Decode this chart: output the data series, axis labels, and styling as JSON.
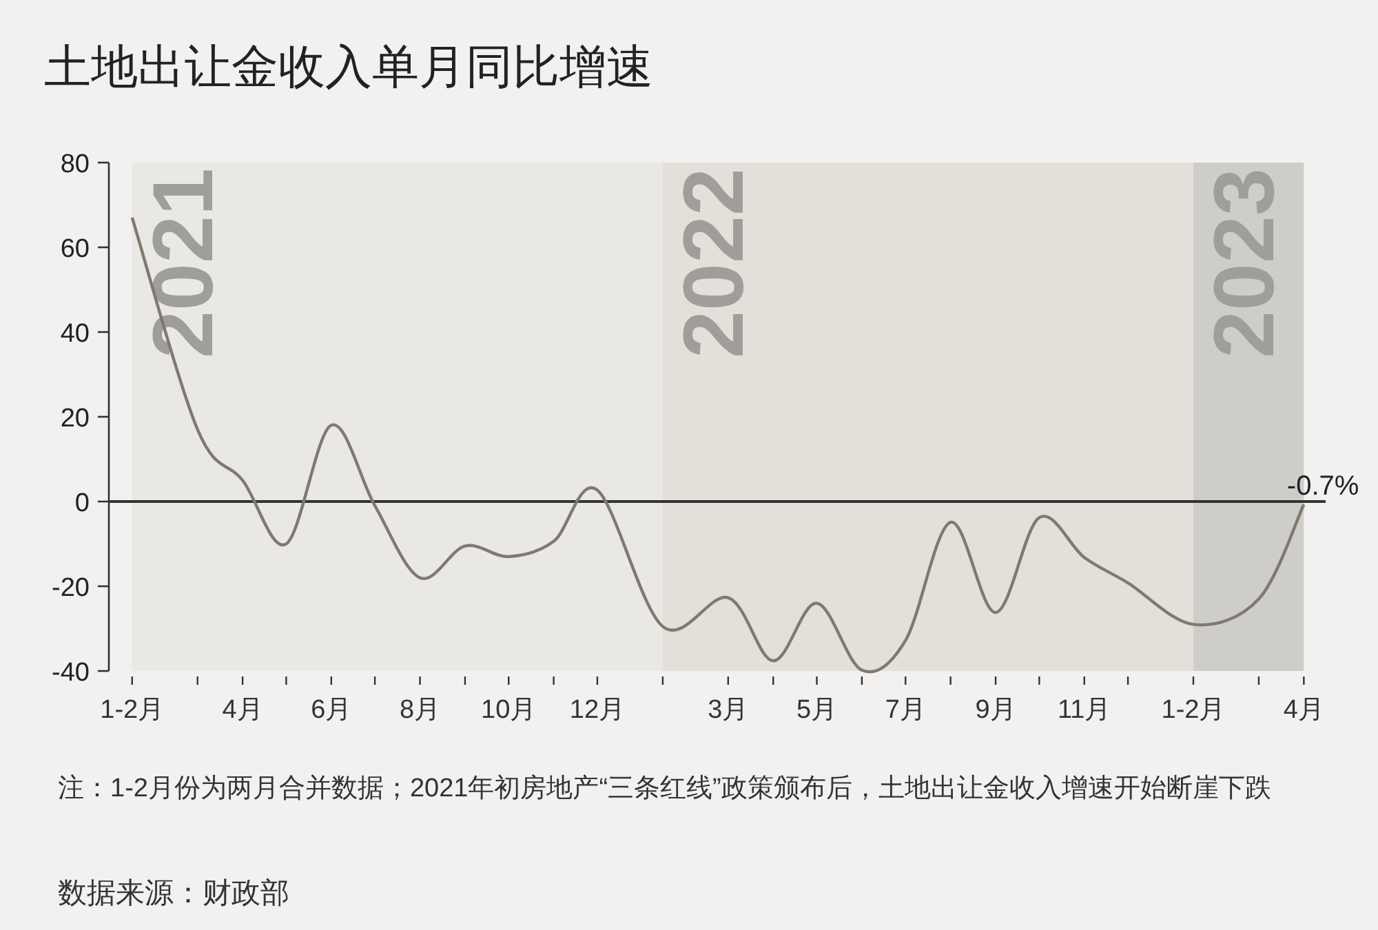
{
  "chart_data": {
    "type": "line",
    "title": "土地出让金收入单月同比增速",
    "x": [
      "2021-01-15",
      "2021-03",
      "2021-04",
      "2021-05",
      "2021-06",
      "2021-07",
      "2021-08",
      "2021-09",
      "2021-10",
      "2021-11",
      "2021-12",
      "2022-01-15",
      "2022-03",
      "2022-04",
      "2022-05",
      "2022-06",
      "2022-07",
      "2022-08",
      "2022-09",
      "2022-10",
      "2022-11",
      "2022-12",
      "2023-01-15",
      "2023-03",
      "2023-04"
    ],
    "xlim": [
      "2020-12-30",
      "2023-04-16"
    ],
    "xticks": [
      {
        "value": "2021-01-15",
        "label": "1-2月"
      },
      {
        "value": "2021-03",
        "label": null
      },
      {
        "value": "2021-04",
        "label": "4月"
      },
      {
        "value": "2021-05",
        "label": null
      },
      {
        "value": "2021-06",
        "label": "6月"
      },
      {
        "value": "2021-07",
        "label": null
      },
      {
        "value": "2021-08",
        "label": "8月"
      },
      {
        "value": "2021-09",
        "label": null
      },
      {
        "value": "2021-10",
        "label": "10月"
      },
      {
        "value": "2021-11",
        "label": null
      },
      {
        "value": "2021-12",
        "label": "12月"
      },
      {
        "value": "2022-01-15",
        "label": null
      },
      {
        "value": "2022-03",
        "label": "3月"
      },
      {
        "value": "2022-04",
        "label": null
      },
      {
        "value": "2022-05",
        "label": "5月"
      },
      {
        "value": "2022-06",
        "label": null
      },
      {
        "value": "2022-07",
        "label": "7月"
      },
      {
        "value": "2022-08",
        "label": null
      },
      {
        "value": "2022-09",
        "label": "9月"
      },
      {
        "value": "2022-10",
        "label": null
      },
      {
        "value": "2022-11",
        "label": "11月"
      },
      {
        "value": "2022-12",
        "label": null
      },
      {
        "value": "2023-01-15",
        "label": "1-2月"
      },
      {
        "value": "2023-03",
        "label": null
      },
      {
        "value": "2023-04",
        "label": "4月"
      }
    ],
    "series": [
      {
        "color": "#7f7a6e",
        "values": [
          67,
          17,
          5,
          -10,
          18,
          -1,
          -18,
          -10.5,
          -13,
          -9.4,
          2.7,
          -29.5,
          -22.7,
          -37.6,
          -24,
          -39.8,
          -32.8,
          -4.9,
          -26.2,
          -3.8,
          -13.2,
          -19.2,
          -29,
          -23,
          -0.7
        ],
        "value_labels": [
          null,
          null,
          null,
          null,
          null,
          null,
          null,
          null,
          null,
          null,
          null,
          null,
          null,
          null,
          null,
          null,
          null,
          null,
          null,
          null,
          null,
          null,
          null,
          null,
          "-0.7%"
        ]
      }
    ],
    "ylim": [
      -40,
      80
    ],
    "yticks": [
      -40,
      -20,
      0,
      20,
      40,
      60,
      80
    ],
    "grid": false,
    "marker": "none",
    "line_style": "solid",
    "ref_lines": [
      {
        "axis": "y",
        "value": 0,
        "color": "#333333"
      }
    ],
    "bands": [
      {
        "axis": "x",
        "from": "2021-01-15",
        "to": "2022-01-15",
        "label": "2021",
        "color": "#e9e8e5"
      },
      {
        "axis": "x",
        "from": "2022-01-15",
        "to": "2023-01-15",
        "label": "2022",
        "color": "#e3e0d9"
      },
      {
        "axis": "x",
        "from": "2023-01-15",
        "to": "2023-04",
        "label": "2023",
        "color": "#cfcdca"
      }
    ],
    "annotations": [
      "注：1-2月份为两月合并数据；2021年初房地产“三条红线”政策颁布后，土地出让金收入增速开始断崖下跌",
      "数据来源：财政部"
    ]
  }
}
